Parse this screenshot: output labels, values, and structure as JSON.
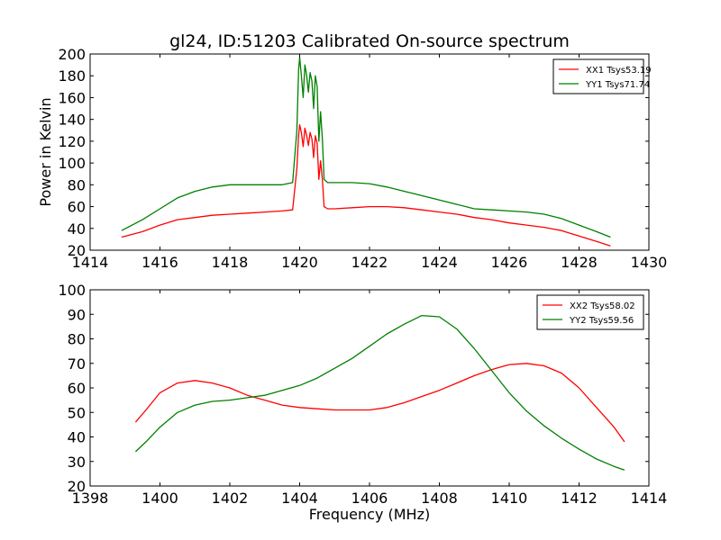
{
  "chart_data": [
    {
      "type": "line",
      "title": "gl24, ID:51203 Calibrated On-source spectrum",
      "xlabel": "",
      "ylabel": "Power in Kelvin",
      "xlim": [
        1414,
        1430
      ],
      "ylim": [
        20,
        200
      ],
      "xticks": [
        "1414",
        "1416",
        "1418",
        "1420",
        "1422",
        "1424",
        "1426",
        "1428",
        "1430"
      ],
      "yticks": [
        "20",
        "40",
        "60",
        "80",
        "100",
        "120",
        "140",
        "160",
        "180",
        "200"
      ],
      "legend_position": "top-right",
      "series": [
        {
          "name": "XX1 Tsys53.19",
          "color": "#ff0000",
          "x": [
            1414.9,
            1415.5,
            1416.0,
            1416.5,
            1417.0,
            1417.5,
            1418.0,
            1418.5,
            1419.0,
            1419.5,
            1419.8,
            1419.92,
            1419.97,
            1420.0,
            1420.05,
            1420.1,
            1420.15,
            1420.2,
            1420.25,
            1420.3,
            1420.35,
            1420.4,
            1420.45,
            1420.5,
            1420.55,
            1420.6,
            1420.65,
            1420.7,
            1420.8,
            1421.0,
            1421.5,
            1422.0,
            1422.5,
            1423.0,
            1423.5,
            1424.0,
            1424.5,
            1425.0,
            1425.5,
            1426.0,
            1426.5,
            1427.0,
            1427.5,
            1428.0,
            1428.5,
            1428.9
          ],
          "y": [
            32,
            37,
            43,
            48,
            50,
            52,
            53,
            54,
            55,
            56,
            57,
            95,
            125,
            135,
            128,
            115,
            132,
            125,
            116,
            128,
            122,
            105,
            125,
            118,
            85,
            102,
            85,
            60,
            58,
            58,
            59,
            60,
            60,
            59,
            57,
            55,
            53,
            50,
            48,
            45,
            43,
            41,
            38,
            33,
            28,
            24
          ]
        },
        {
          "name": "YY1 Tsys71.74",
          "color": "#008000",
          "x": [
            1414.9,
            1415.5,
            1416.0,
            1416.5,
            1417.0,
            1417.5,
            1418.0,
            1418.5,
            1419.0,
            1419.5,
            1419.8,
            1419.92,
            1419.97,
            1420.0,
            1420.05,
            1420.1,
            1420.15,
            1420.2,
            1420.25,
            1420.3,
            1420.35,
            1420.4,
            1420.45,
            1420.5,
            1420.55,
            1420.6,
            1420.65,
            1420.7,
            1420.8,
            1421.0,
            1421.5,
            1422.0,
            1422.5,
            1423.0,
            1423.5,
            1424.0,
            1424.5,
            1425.0,
            1425.5,
            1426.0,
            1426.5,
            1427.0,
            1427.5,
            1428.0,
            1428.5,
            1428.9
          ],
          "y": [
            38,
            48,
            58,
            68,
            74,
            78,
            80,
            80,
            80,
            80,
            82,
            130,
            185,
            197,
            180,
            160,
            190,
            180,
            165,
            183,
            175,
            150,
            180,
            170,
            120,
            147,
            122,
            85,
            82,
            82,
            82,
            81,
            78,
            74,
            70,
            66,
            62,
            58,
            57,
            56,
            55,
            53,
            49,
            43,
            37,
            32
          ]
        }
      ]
    },
    {
      "type": "line",
      "title": "",
      "xlabel": "Frequency (MHz)",
      "ylabel": "",
      "xlim": [
        1398,
        1414
      ],
      "ylim": [
        20,
        100
      ],
      "xticks": [
        "1398",
        "1400",
        "1402",
        "1404",
        "1406",
        "1408",
        "1410",
        "1412",
        "1414"
      ],
      "yticks": [
        "20",
        "30",
        "40",
        "50",
        "60",
        "70",
        "80",
        "90",
        "100"
      ],
      "legend_position": "top-right",
      "series": [
        {
          "name": "XX2 Tsys58.02",
          "color": "#ff0000",
          "x": [
            1399.3,
            1399.6,
            1400.0,
            1400.5,
            1401.0,
            1401.5,
            1402.0,
            1402.5,
            1403.0,
            1403.5,
            1404.0,
            1404.5,
            1405.0,
            1405.5,
            1406.0,
            1406.5,
            1407.0,
            1407.5,
            1408.0,
            1408.5,
            1409.0,
            1409.5,
            1410.0,
            1410.5,
            1411.0,
            1411.5,
            1412.0,
            1412.5,
            1413.0,
            1413.3
          ],
          "y": [
            46,
            51,
            58,
            62,
            63,
            62,
            60,
            57,
            55,
            53,
            52,
            51.5,
            51,
            51,
            51,
            52,
            54,
            56.5,
            59,
            62,
            65,
            67.5,
            69.5,
            70,
            69,
            66,
            60,
            52,
            44,
            38
          ]
        },
        {
          "name": "YY2 Tsys59.56",
          "color": "#008000",
          "x": [
            1399.3,
            1399.6,
            1400.0,
            1400.5,
            1401.0,
            1401.5,
            1402.0,
            1402.5,
            1403.0,
            1403.5,
            1404.0,
            1404.5,
            1405.0,
            1405.5,
            1406.0,
            1406.5,
            1407.0,
            1407.5,
            1408.0,
            1408.5,
            1409.0,
            1409.5,
            1410.0,
            1410.5,
            1411.0,
            1411.5,
            1412.0,
            1412.5,
            1413.0,
            1413.3
          ],
          "y": [
            34,
            38,
            44,
            50,
            53,
            54.5,
            55,
            56,
            57,
            59,
            61,
            64,
            68,
            72,
            77,
            82,
            86,
            89.5,
            89,
            84,
            76,
            67,
            58,
            50.5,
            44.5,
            39.5,
            35,
            31,
            28,
            26.5
          ]
        }
      ]
    }
  ]
}
